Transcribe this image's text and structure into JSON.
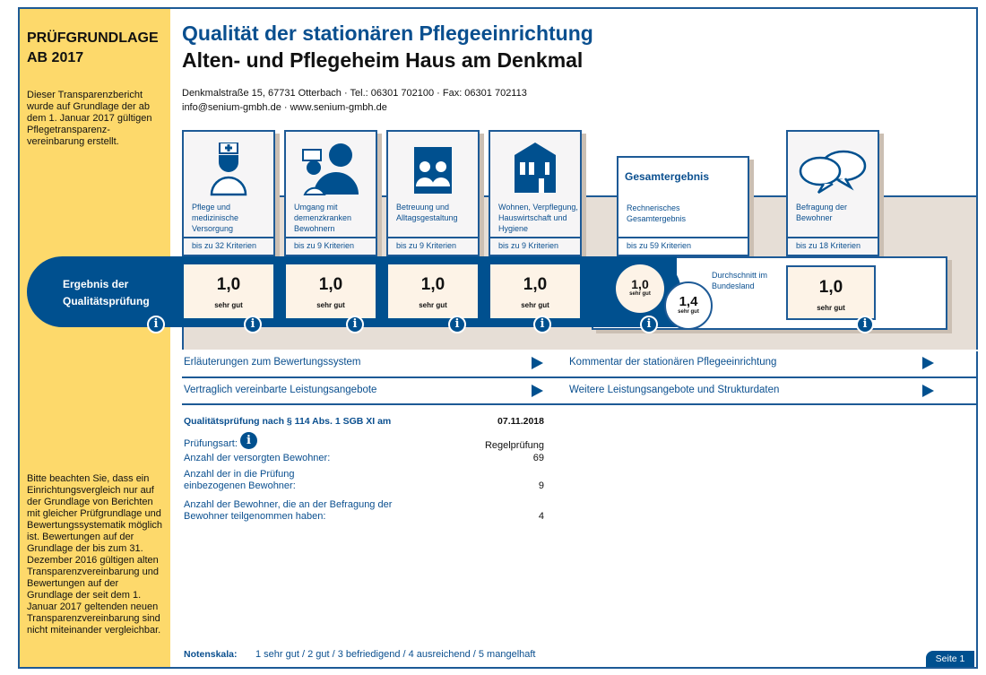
{
  "sidebar": {
    "heading_line1": "PRÜFGRUNDLAGE",
    "heading_line2": "AB 2017",
    "intro": "Dieser Transparenzbericht wurde auf Grundlage der ab dem 1. Januar 2017 gültigen Pflegetransparenz-vereinbarung erstellt.",
    "note": "Bitte beachten Sie, dass ein Einrichtungsvergleich nur auf der Grundlage von Berichten mit gleicher Prüfgrundlage und Bewertungssystematik möglich ist. Bewertungen auf der Grundlage der bis zum 31. Dezember 2016 gültigen alten Transparenzvereinbarung und Bewertungen auf der Grundlage der seit dem 1. Januar 2017 geltenden neuen Transparenzvereinbarung sind nicht miteinander vergleichbar."
  },
  "header": {
    "title": "Qualität der stationären Pflegeeinrichtung",
    "facility": "Alten- und Pflegeheim Haus am Denkmal",
    "address": "Denkmalstraße 15, 67731 Otterbach · Tel.: 06301 702100 · Fax: 06301 702113",
    "contact": "info@senium-gmbh.de · www.senium-gmbh.de"
  },
  "categories": [
    {
      "label": "Pflege und medizinische Versorgung",
      "criteria": "bis zu 32 Kriterien",
      "score": "1,0",
      "grade": "sehr gut",
      "icon": "nurse-icon"
    },
    {
      "label": "Umgang mit demenzkranken Bewohnern",
      "criteria": "bis zu 9 Kriterien",
      "score": "1,0",
      "grade": "sehr gut",
      "icon": "dementia-care-icon"
    },
    {
      "label": "Betreuung und Alltagsgestaltung",
      "criteria": "bis zu 9 Kriterien",
      "score": "1,0",
      "grade": "sehr gut",
      "icon": "people-icon"
    },
    {
      "label": "Wohnen, Verpflegung, Hauswirtschaft und Hygiene",
      "criteria": "bis zu 9 Kriterien",
      "score": "1,0",
      "grade": "sehr gut",
      "icon": "house-icon"
    }
  ],
  "overall": {
    "title": "Gesamtergebnis",
    "label": "Rechnerisches Gesamtergebnis",
    "criteria": "bis zu 59 Kriterien",
    "score": "1,0",
    "grade": "sehr gut",
    "avg_label": "Durchschnitt im Bundesland",
    "avg_score": "1,4",
    "avg_grade": "sehr gut"
  },
  "survey": {
    "label": "Befragung der Bewohner",
    "criteria": "bis zu 18 Kriterien",
    "score": "1,0",
    "grade": "sehr gut"
  },
  "band_label": "Ergebnis der Qualitätsprüfung",
  "links": [
    "Erläuterungen zum Bewertungssystem",
    "Kommentar der stationären Pflegeeinrichtung",
    "Vertraglich vereinbarte Leistungsangebote",
    "Weitere Leistungsangebote und Strukturdaten"
  ],
  "details": {
    "heading": "Qualitätsprüfung nach § 114 Abs. 1 SGB XI am",
    "date": "07.11.2018",
    "rows": [
      {
        "label": "Prüfungsart:",
        "value": "Regelprüfung"
      },
      {
        "label": "Anzahl der versorgten Bewohner:",
        "value": "69"
      },
      {
        "label": "Anzahl der in die Prüfung einbezogenen Bewohner:",
        "value": "9"
      },
      {
        "label": "Anzahl der Bewohner, die an der Befragung der Bewohner teilgenommen haben:",
        "value": "4"
      }
    ]
  },
  "footer": {
    "scale_label": "Notenskala:",
    "scale": "1 sehr gut / 2 gut / 3 befriedigend / 4 ausreichend / 5 mangelhaft",
    "page": "Seite 1"
  },
  "info_glyph": "i"
}
